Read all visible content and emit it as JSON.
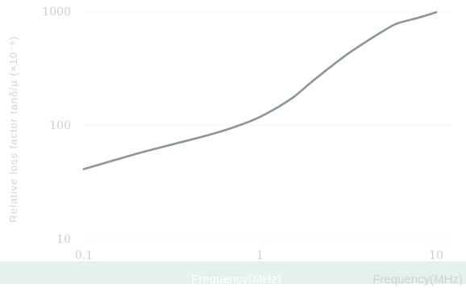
{
  "chart_data": {
    "type": "line",
    "xscale": "log",
    "yscale": "log",
    "xlim": [
      0.1,
      10
    ],
    "ylim": [
      10,
      1000
    ],
    "x_ticks": [
      "0.1",
      "1",
      "10"
    ],
    "y_ticks": [
      "10",
      "100",
      "1000"
    ],
    "ylabel": "Relative loss factor tanδ/μ (×10⁻⁶)",
    "xlabel": "Frequency(MHz)",
    "band_label": "Frequency(MHz)",
    "series": [
      {
        "color": "#8a9894",
        "x": [
          0.1,
          0.2,
          0.3,
          0.5,
          0.7,
          1.0,
          1.5,
          2.0,
          3.0,
          4.0,
          5.0,
          6.0,
          8.0,
          10.0
        ],
        "y": [
          41,
          56,
          66,
          81,
          95,
          118,
          170,
          245,
          400,
          540,
          670,
          780,
          880,
          980
        ]
      }
    ]
  }
}
